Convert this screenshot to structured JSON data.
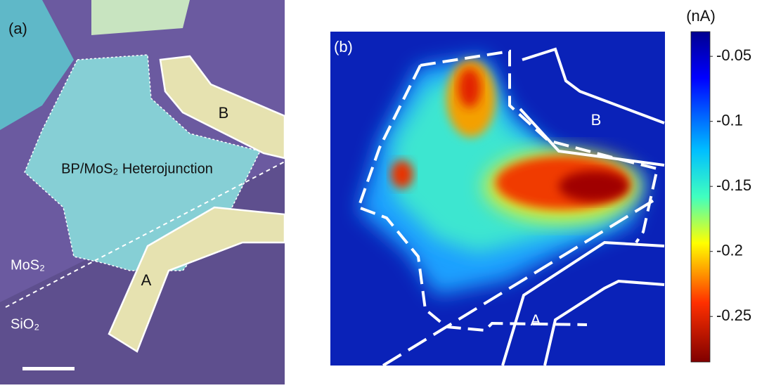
{
  "panel_a": {
    "label": "(a)",
    "electrode_b": "B",
    "heterojunction": "BP/MoS₂ Heterojunction",
    "mos2": "MoS₂",
    "electrode_a": "A",
    "sio2": "SiO₂"
  },
  "panel_b": {
    "label": "(b)",
    "electrode_b": "B",
    "electrode_a": "A",
    "colorbar": {
      "label": "(nA)",
      "lim": [
        -0.031,
        -0.285
      ],
      "ticks": [
        -0.05,
        -0.1,
        -0.15,
        -0.2,
        -0.25
      ]
    }
  }
}
